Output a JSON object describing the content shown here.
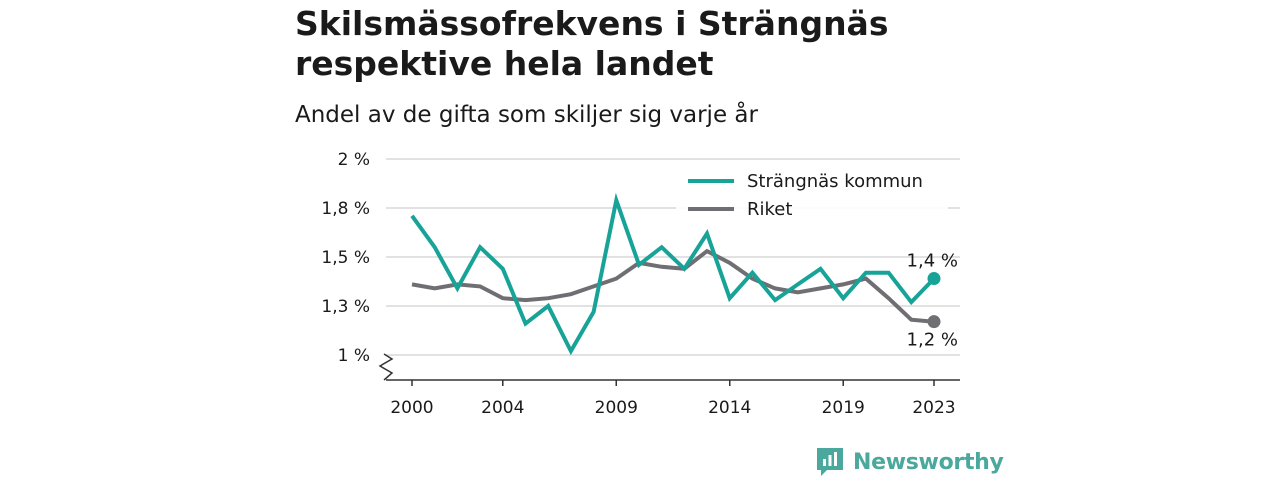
{
  "title": "Skilsmässofrekvens i Strängnäs respektive hela landet",
  "subtitle": "Andel av de gifta som skiljer sig varje år",
  "brand": {
    "name": "Newsworthy",
    "icon": "newsworthy-logo-icon",
    "color": "#4aa89c"
  },
  "chart_data": {
    "type": "line",
    "title": "Skilsmässofrekvens i Strängnäs respektive hela landet",
    "subtitle": "Andel av de gifta som skiljer sig varje år",
    "xlabel": "",
    "ylabel": "",
    "x": [
      2000,
      2001,
      2002,
      2003,
      2004,
      2005,
      2006,
      2007,
      2008,
      2009,
      2010,
      2011,
      2012,
      2013,
      2014,
      2015,
      2016,
      2017,
      2018,
      2019,
      2020,
      2021,
      2022,
      2023
    ],
    "x_ticks": [
      2000,
      2004,
      2009,
      2014,
      2019,
      2023
    ],
    "x_tick_labels": [
      "2000",
      "2004",
      "2009",
      "2014",
      "2019",
      "2023"
    ],
    "y_ticks": [
      1.0,
      1.25,
      1.5,
      1.75,
      2.0
    ],
    "y_tick_labels": [
      "1 %",
      "1,3 %",
      "1,5 %",
      "1,8 %",
      "2 %"
    ],
    "ylim": [
      1.0,
      2.0
    ],
    "y_axis_break": true,
    "grid": "horizontal",
    "legend_position": "top-right",
    "series": [
      {
        "name": "Strängnäs kommun",
        "color": "#17a398",
        "values": [
          1.71,
          1.55,
          1.34,
          1.55,
          1.44,
          1.16,
          1.25,
          1.02,
          1.22,
          1.79,
          1.46,
          1.55,
          1.44,
          1.62,
          1.29,
          1.42,
          1.28,
          1.36,
          1.44,
          1.29,
          1.42,
          1.42,
          1.27,
          1.39
        ],
        "end_label": "1,4 %"
      },
      {
        "name": "Riket",
        "color": "#6e6e73",
        "values": [
          1.36,
          1.34,
          1.36,
          1.35,
          1.29,
          1.28,
          1.29,
          1.31,
          1.35,
          1.39,
          1.47,
          1.45,
          1.44,
          1.53,
          1.47,
          1.39,
          1.34,
          1.32,
          1.34,
          1.36,
          1.39,
          1.29,
          1.18,
          1.17
        ],
        "end_label": "1,2 %"
      }
    ]
  }
}
